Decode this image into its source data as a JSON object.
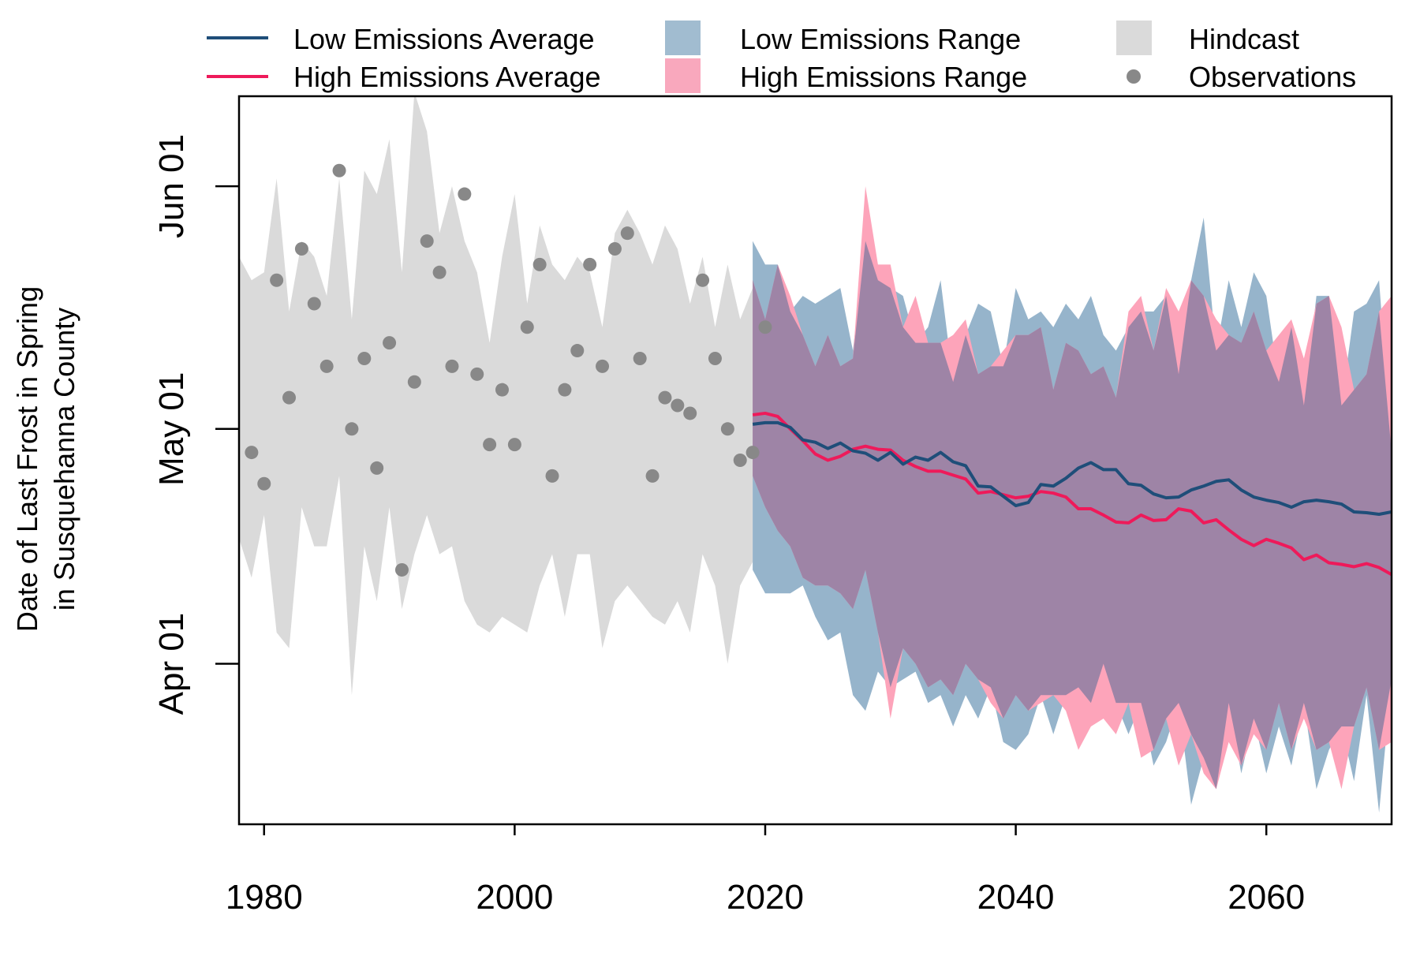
{
  "chart_data": {
    "type": "area",
    "title": "",
    "xlabel": "",
    "ylabel_lines": [
      "Date of Last Frost in Spring",
      "in Susquehanna County"
    ],
    "xlim": [
      1978,
      2070
    ],
    "ylim": [
      70.5,
      163.5
    ],
    "x_ticks": [
      {
        "value": 1980,
        "label": "1980"
      },
      {
        "value": 2000,
        "label": "2000"
      },
      {
        "value": 2020,
        "label": "2020"
      },
      {
        "value": 2040,
        "label": "2040"
      },
      {
        "value": 2060,
        "label": "2060"
      }
    ],
    "y_ticks": [
      {
        "value": 91,
        "label": "Apr 01"
      },
      {
        "value": 121,
        "label": "May 01"
      },
      {
        "value": 152,
        "label": "Jun 01"
      }
    ],
    "y_unit": "day of year",
    "legend_position": "top, above plot",
    "legend": [
      {
        "label": "Low Emissions Average",
        "kind": "line",
        "color": "#1f4e79"
      },
      {
        "label": "High Emissions Average",
        "kind": "line",
        "color": "#ee1a5a"
      },
      {
        "label": "Low Emissions Range",
        "kind": "fill",
        "color": "#a1bcd0"
      },
      {
        "label": "High Emissions Range",
        "kind": "fill",
        "color": "#f9a8bd"
      },
      {
        "label": "Hindcast",
        "kind": "fill",
        "color": "#dadada"
      },
      {
        "label": "Observations",
        "kind": "point",
        "color": "#888888"
      }
    ],
    "colors": {
      "low_avg": "#1f4e79",
      "high_avg": "#ee1a5a",
      "low_range": "#96b4cb",
      "high_range": "#fda4ba",
      "overlap": "#9e84a6",
      "hindcast": "#dadada",
      "obs": "#888888"
    },
    "hindcast": {
      "x": [
        1978,
        1979,
        1980,
        1981,
        1982,
        1983,
        1984,
        1985,
        1986,
        1987,
        1988,
        1989,
        1990,
        1991,
        1992,
        1993,
        1994,
        1995,
        1996,
        1997,
        1998,
        1999,
        2000,
        2001,
        2002,
        2003,
        2004,
        2005,
        2006,
        2007,
        2008,
        2009,
        2010,
        2011,
        2012,
        2013,
        2014,
        2015,
        2016,
        2017,
        2018,
        2019
      ],
      "upper": [
        143,
        140,
        141,
        153,
        136,
        145,
        143,
        138,
        153,
        135,
        154,
        151,
        158,
        141,
        164,
        159,
        146,
        152,
        145,
        141,
        132,
        143,
        151,
        137,
        147,
        142,
        140,
        143,
        141,
        134,
        146,
        149,
        146,
        142,
        147,
        144,
        137,
        143,
        134,
        142,
        135,
        139
      ],
      "lower": [
        107,
        102,
        110,
        95,
        93,
        111,
        106,
        106,
        115,
        87,
        106,
        99,
        111,
        98,
        105,
        110,
        105,
        106,
        99,
        96,
        95,
        97,
        96,
        95,
        101,
        105,
        97,
        105,
        105,
        93,
        99,
        101,
        99,
        97,
        96,
        99,
        95,
        105,
        101,
        91,
        101,
        104
      ]
    },
    "low_range": {
      "x": [
        2019,
        2020,
        2021,
        2022,
        2023,
        2024,
        2025,
        2026,
        2027,
        2028,
        2029,
        2030,
        2031,
        2032,
        2033,
        2034,
        2035,
        2036,
        2037,
        2038,
        2039,
        2040,
        2041,
        2042,
        2043,
        2044,
        2045,
        2046,
        2047,
        2048,
        2049,
        2050,
        2051,
        2052,
        2053,
        2054,
        2055,
        2056,
        2057,
        2058,
        2059,
        2060,
        2061,
        2062,
        2063,
        2064,
        2065,
        2066,
        2067,
        2068,
        2069,
        2070
      ],
      "upper": [
        145,
        142,
        142,
        136,
        138,
        137,
        138,
        139,
        131,
        145,
        140,
        139,
        138,
        132,
        134,
        140,
        127,
        133,
        137,
        136,
        129,
        139,
        135,
        136,
        134,
        137,
        135,
        138,
        133,
        131,
        134,
        136,
        136,
        138,
        128,
        140,
        148,
        131,
        140,
        134,
        141,
        138,
        127,
        134,
        124,
        138,
        138,
        124,
        136,
        137,
        140,
        118
      ],
      "lower": [
        103,
        100,
        100,
        100,
        101,
        97,
        94,
        95,
        87,
        85,
        90,
        88,
        89,
        90,
        86,
        87,
        83,
        87,
        84,
        88,
        81,
        80,
        82,
        87,
        82,
        87,
        88,
        86,
        91,
        86,
        82,
        86,
        78,
        81,
        86,
        73,
        79,
        75,
        86,
        77,
        84,
        77,
        83,
        78,
        86,
        75,
        80,
        83,
        76,
        87,
        72,
        89
      ]
    },
    "high_range": {
      "x": [
        2019,
        2020,
        2021,
        2022,
        2023,
        2024,
        2025,
        2026,
        2027,
        2028,
        2029,
        2030,
        2031,
        2032,
        2033,
        2034,
        2035,
        2036,
        2037,
        2038,
        2039,
        2040,
        2041,
        2042,
        2043,
        2044,
        2045,
        2046,
        2047,
        2048,
        2049,
        2050,
        2051,
        2052,
        2053,
        2054,
        2055,
        2056,
        2057,
        2058,
        2059,
        2060,
        2061,
        2062,
        2063,
        2064,
        2065,
        2066,
        2067,
        2068,
        2069,
        2070
      ],
      "upper": [
        140,
        135,
        142,
        138,
        133,
        129,
        133,
        129,
        130,
        152,
        142,
        142,
        134,
        138,
        132,
        132,
        133,
        135,
        128,
        129,
        131,
        133,
        133,
        134,
        126,
        132,
        131,
        128,
        129,
        125,
        136,
        138,
        131,
        139,
        136,
        140,
        138,
        135,
        133,
        132,
        136,
        131,
        133,
        135,
        130,
        137,
        138,
        134,
        126,
        128,
        136,
        138
      ],
      "lower": [
        115,
        111,
        108,
        106,
        102,
        101,
        101,
        100,
        98,
        103,
        95,
        84,
        93,
        91,
        88,
        89,
        87,
        91,
        89,
        86,
        84,
        87,
        85,
        86,
        87,
        85,
        80,
        83,
        84,
        82,
        86,
        79,
        80,
        84,
        78,
        82,
        77,
        75,
        81,
        78,
        82,
        80,
        86,
        80,
        84,
        80,
        81,
        75,
        83,
        88,
        80,
        81
      ]
    },
    "series": [
      {
        "name": "Low Emissions Average",
        "x": [
          2019,
          2020,
          2021,
          2022,
          2023,
          2024,
          2025,
          2026,
          2027,
          2028,
          2029,
          2030,
          2031,
          2032,
          2033,
          2034,
          2035,
          2036,
          2037,
          2038,
          2039,
          2040,
          2041,
          2042,
          2043,
          2044,
          2045,
          2046,
          2047,
          2048,
          2049,
          2050,
          2051,
          2052,
          2053,
          2054,
          2055,
          2056,
          2057,
          2058,
          2059,
          2060,
          2061,
          2062,
          2063,
          2064,
          2065,
          2066,
          2067,
          2068,
          2069,
          2070
        ],
        "values": [
          121.6,
          121.8,
          121.8,
          121.2,
          119.6,
          119.3,
          118.5,
          119.2,
          118.2,
          117.9,
          117,
          118,
          116.5,
          117.4,
          117,
          118,
          116.8,
          116.3,
          113.7,
          113.6,
          112.4,
          111.2,
          111.6,
          113.9,
          113.7,
          114.7,
          116,
          116.7,
          115.8,
          115.8,
          114,
          113.8,
          112.7,
          112.2,
          112.3,
          113.2,
          113.7,
          114.3,
          114.5,
          113.2,
          112.3,
          111.9,
          111.6,
          111,
          111.7,
          111.9,
          111.7,
          111.4,
          110.4,
          110.3,
          110.1,
          110.4
        ]
      },
      {
        "name": "High Emissions Average",
        "x": [
          2019,
          2020,
          2021,
          2022,
          2023,
          2024,
          2025,
          2026,
          2027,
          2028,
          2029,
          2030,
          2031,
          2032,
          2033,
          2034,
          2035,
          2036,
          2037,
          2038,
          2039,
          2040,
          2041,
          2042,
          2043,
          2044,
          2045,
          2046,
          2047,
          2048,
          2049,
          2050,
          2051,
          2052,
          2053,
          2054,
          2055,
          2056,
          2057,
          2058,
          2059,
          2060,
          2061,
          2062,
          2063,
          2064,
          2065,
          2066,
          2067,
          2068,
          2069,
          2070
        ],
        "values": [
          122.8,
          123,
          122.6,
          121,
          119.5,
          117.8,
          117,
          117.5,
          118.4,
          118.8,
          118.4,
          118.3,
          117,
          116.2,
          115.6,
          115.6,
          115.1,
          114.6,
          112.8,
          113,
          112.6,
          112.2,
          112.4,
          113,
          112.8,
          112.3,
          110.8,
          110.8,
          110,
          109.1,
          109,
          110,
          109.3,
          109.4,
          110.8,
          110.5,
          109,
          109.4,
          108.1,
          106.9,
          106.1,
          106.9,
          106.4,
          105.8,
          104.3,
          104.9,
          103.9,
          103.7,
          103.4,
          103.8,
          103.3,
          102.4
        ]
      }
    ],
    "observations": {
      "x": [
        1979,
        1980,
        1981,
        1982,
        1983,
        1984,
        1985,
        1986,
        1987,
        1988,
        1989,
        1990,
        1991,
        1992,
        1993,
        1994,
        1995,
        1996,
        1997,
        1998,
        1999,
        2000,
        2001,
        2002,
        2003,
        2004,
        2005,
        2006,
        2007,
        2008,
        2009,
        2010,
        2011,
        2012,
        2013,
        2014,
        2015,
        2016,
        2017,
        2018,
        2019,
        2020
      ],
      "values": [
        118,
        114,
        140,
        125,
        144,
        137,
        129,
        154,
        121,
        130,
        116,
        132,
        103,
        127,
        145,
        141,
        129,
        151,
        128,
        119,
        126,
        119,
        134,
        142,
        115,
        126,
        131,
        142,
        129,
        144,
        146,
        130,
        115,
        125,
        124,
        123,
        140,
        130,
        121,
        117,
        118,
        134
      ]
    }
  }
}
